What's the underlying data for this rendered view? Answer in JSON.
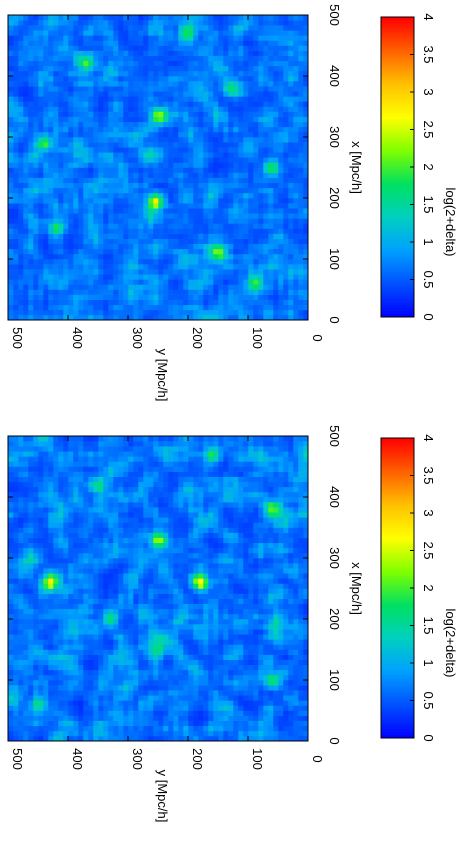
{
  "colors": {
    "scale": [
      "#0000ff",
      "#0050ff",
      "#00a0ff",
      "#00d0c0",
      "#00e060",
      "#80ff00",
      "#ffff00",
      "#ffc000",
      "#ff6000",
      "#ff0000"
    ],
    "frame": "#000000"
  },
  "chart_data": [
    {
      "type": "heatmap",
      "title": "",
      "xlabel": "x [Mpc/h]",
      "ylabel": "y [Mpc/h]",
      "xlim": [
        0,
        500
      ],
      "ylim": [
        0,
        500
      ],
      "xticks": [
        "0",
        "100",
        "200",
        "300",
        "400",
        "500"
      ],
      "yticks": [
        "0",
        "100",
        "200",
        "300",
        "400",
        "500"
      ],
      "colorbar": {
        "label": "log(2+delta)",
        "range": [
          0,
          4
        ],
        "ticks": [
          "0",
          "0.5",
          "1",
          "1.5",
          "2",
          "2.5",
          "3",
          "3.5",
          "4"
        ]
      },
      "grid": false,
      "rotation": "page rotated 90 degrees clockwise",
      "hotspots": [
        {
          "x": 195,
          "y": 255,
          "v": 2.7
        },
        {
          "x": 335,
          "y": 250,
          "v": 2.4
        },
        {
          "x": 290,
          "y": 440,
          "v": 2.2
        },
        {
          "x": 110,
          "y": 150,
          "v": 2.1
        },
        {
          "x": 420,
          "y": 370,
          "v": 2.0
        },
        {
          "x": 60,
          "y": 90,
          "v": 1.9
        },
        {
          "x": 250,
          "y": 60,
          "v": 2.0
        },
        {
          "x": 470,
          "y": 200,
          "v": 1.8
        },
        {
          "x": 150,
          "y": 420,
          "v": 1.9
        },
        {
          "x": 380,
          "y": 130,
          "v": 1.8
        }
      ]
    },
    {
      "type": "heatmap",
      "title": "",
      "xlabel": "x [Mpc/h]",
      "ylabel": "y [Mpc/h]",
      "xlim": [
        0,
        500
      ],
      "ylim": [
        0,
        500
      ],
      "xticks": [
        "0",
        "100",
        "200",
        "300",
        "400",
        "500"
      ],
      "yticks": [
        "0",
        "100",
        "200",
        "300",
        "400",
        "500"
      ],
      "colorbar": {
        "label": "log(2+delta)",
        "range": [
          0,
          4
        ],
        "ticks": [
          "0",
          "0.5",
          "1",
          "1.5",
          "2",
          "2.5",
          "3",
          "3.5",
          "4"
        ]
      },
      "grid": false,
      "rotation": "page rotated 90 degrees clockwise",
      "hotspots": [
        {
          "x": 260,
          "y": 430,
          "v": 2.6
        },
        {
          "x": 330,
          "y": 250,
          "v": 2.3
        },
        {
          "x": 260,
          "y": 180,
          "v": 2.5
        },
        {
          "x": 470,
          "y": 160,
          "v": 1.9
        },
        {
          "x": 100,
          "y": 60,
          "v": 2.0
        },
        {
          "x": 380,
          "y": 60,
          "v": 1.8
        },
        {
          "x": 60,
          "y": 450,
          "v": 1.9
        },
        {
          "x": 200,
          "y": 330,
          "v": 1.8
        },
        {
          "x": 420,
          "y": 350,
          "v": 1.8
        },
        {
          "x": 150,
          "y": 250,
          "v": 1.7
        }
      ]
    }
  ]
}
